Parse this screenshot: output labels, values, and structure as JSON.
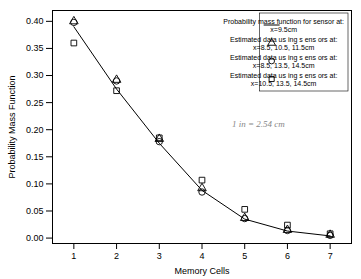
{
  "chart_data": {
    "type": "line",
    "xlabel": "Memory Cells",
    "ylabel": "Probability Mass Function",
    "annotation": "1 in = 2.54 cm",
    "xlim": [
      0.5,
      7.5
    ],
    "ylim": [
      -0.01,
      0.42
    ],
    "xticks": [
      1,
      2,
      3,
      4,
      5,
      6,
      7
    ],
    "yticks": [
      {
        "value": 0.0,
        "label": "0.00"
      },
      {
        "value": 0.05,
        "label": "0.05"
      },
      {
        "value": 0.1,
        "label": "0.10"
      },
      {
        "value": 0.15,
        "label": "0.15"
      },
      {
        "value": 0.2,
        "label": "0.20"
      },
      {
        "value": 0.25,
        "label": "0.25"
      },
      {
        "value": 0.3,
        "label": "0.30"
      },
      {
        "value": 0.35,
        "label": "0.35"
      },
      {
        "value": 0.4,
        "label": "0.40"
      }
    ],
    "grid": false,
    "legend": "upper right",
    "x": [
      1,
      2,
      3,
      4,
      5,
      6,
      7
    ],
    "series": [
      {
        "name": "Probability mass function for sensor at:\nx=9.5cm",
        "type": "line",
        "line_style": "solid",
        "color": "black",
        "values": [
          0.39,
          0.275,
          0.175,
          0.088,
          0.035,
          0.013,
          0.004
        ]
      },
      {
        "name": "Estimated data us ing s ens ors at:\nx=8.5, 10.5, 11.5cm",
        "type": "scatter",
        "marker": "triangle",
        "color": "black",
        "values": [
          0.4,
          0.292,
          0.183,
          0.092,
          0.037,
          0.015,
          0.006
        ]
      },
      {
        "name": "Estimated data us ing s ens ors at:\nx=8.5, 13.5, 14.5cm",
        "type": "scatter",
        "marker": "circle",
        "color": "black",
        "values": [
          0.398,
          0.29,
          0.178,
          0.085,
          0.036,
          0.014,
          0.005
        ]
      },
      {
        "name": "Estimated data us ing s ens ors at:\nx=10.5, 13.5, 14.5cm",
        "type": "scatter",
        "marker": "square",
        "color": "black",
        "values": [
          0.36,
          0.272,
          0.185,
          0.107,
          0.053,
          0.024,
          0.008
        ]
      }
    ]
  }
}
